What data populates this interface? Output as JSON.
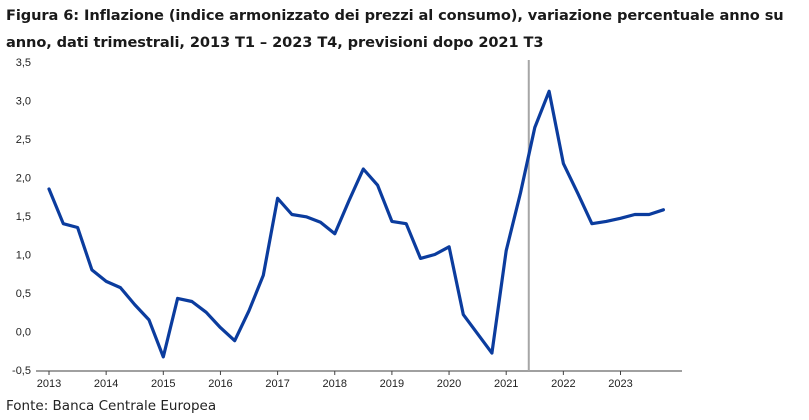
{
  "chart_data": {
    "type": "line",
    "title": "Figura 6: Inflazione (indice armonizzato dei prezzi al consumo), variazione percentuale anno su anno, dati trimestrali, 2013 T1 – 2023 T4, previsioni dopo 2021 T3",
    "source": "Fonte: Banca Centrale Europea",
    "xlabel": "",
    "ylabel": "",
    "ylim": [
      -0.5,
      3.5
    ],
    "y_ticks": [
      "-0,5",
      "0,0",
      "0,5",
      "1,0",
      "1,5",
      "2,0",
      "2,5",
      "3,0",
      "3,5"
    ],
    "x_ticks": [
      "2013",
      "2014",
      "2015",
      "2016",
      "2017",
      "2018",
      "2019",
      "2020",
      "2021",
      "2022",
      "2023"
    ],
    "grid": false,
    "legend": "none",
    "forecast_marker_after": "2021 T3",
    "series": [
      {
        "color": "#0b3c9e",
        "x": [
          "2013 T1",
          "2013 T2",
          "2013 T3",
          "2013 T4",
          "2014 T1",
          "2014 T2",
          "2014 T3",
          "2014 T4",
          "2015 T1",
          "2015 T2",
          "2015 T3",
          "2015 T4",
          "2016 T1",
          "2016 T2",
          "2016 T3",
          "2016 T4",
          "2017 T1",
          "2017 T2",
          "2017 T3",
          "2017 T4",
          "2018 T1",
          "2018 T2",
          "2018 T3",
          "2018 T4",
          "2019 T1",
          "2019 T2",
          "2019 T3",
          "2019 T4",
          "2020 T1",
          "2020 T2",
          "2020 T3",
          "2020 T4",
          "2021 T1",
          "2021 T2",
          "2021 T3",
          "2021 T4",
          "2022 T1",
          "2022 T2",
          "2022 T3",
          "2022 T4",
          "2023 T1",
          "2023 T2",
          "2023 T3",
          "2023 T4"
        ],
        "values": [
          1.85,
          1.4,
          1.35,
          0.8,
          0.65,
          0.57,
          0.35,
          0.15,
          -0.33,
          0.43,
          0.39,
          0.25,
          0.05,
          -0.12,
          0.27,
          0.73,
          1.73,
          1.52,
          1.49,
          1.42,
          1.27,
          1.7,
          2.11,
          1.9,
          1.43,
          1.4,
          0.95,
          1.0,
          1.1,
          0.22,
          -0.03,
          -0.28,
          1.05,
          1.8,
          2.65,
          3.12,
          2.18,
          1.8,
          1.4,
          1.43,
          1.47,
          1.52,
          1.52,
          1.58
        ]
      }
    ],
    "colors": {
      "line": "#0b3c9e",
      "axis": "#404040",
      "forecast_marker": "#a6a6a6"
    }
  }
}
